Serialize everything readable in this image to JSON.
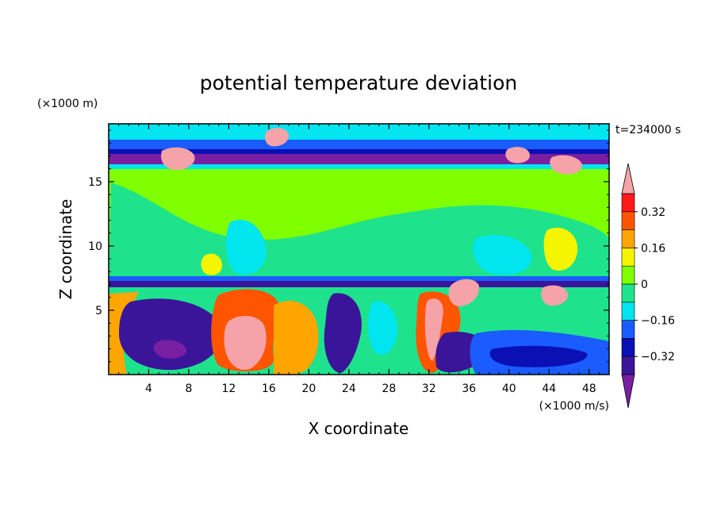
{
  "chart_data": {
    "type": "heatmap",
    "title": "potential temperature deviation",
    "xlabel": "X coordinate",
    "ylabel": "Z coordinate",
    "x_unit": "(×1000 m/s)",
    "y_unit": "(×1000 m)",
    "time_label": "t=234000 s",
    "xlim": [
      0,
      50
    ],
    "ylim": [
      0,
      19.5
    ],
    "x_ticks": [
      4,
      8,
      12,
      16,
      20,
      24,
      28,
      32,
      36,
      40,
      44,
      48
    ],
    "y_ticks": [
      5,
      10,
      15
    ],
    "colorbar": {
      "levels": [
        -0.4,
        -0.32,
        -0.24,
        -0.16,
        -0.08,
        0,
        0.08,
        0.16,
        0.24,
        0.32,
        0.4
      ],
      "tick_values": [
        0.32,
        0.16,
        0,
        -0.16,
        -0.32
      ],
      "tick_labels": [
        "0.32",
        "0.16",
        "0",
        "−0.16",
        "−0.32"
      ],
      "colors": [
        "#7a1fa2",
        "#3b1599",
        "#0a10b4",
        "#1a5cff",
        "#00e5ee",
        "#1ee38c",
        "#7fff00",
        "#f5f500",
        "#ffa500",
        "#ff5500",
        "#ff1a1a",
        "#f5a3a8"
      ],
      "extend": "both"
    },
    "grid": false
  }
}
